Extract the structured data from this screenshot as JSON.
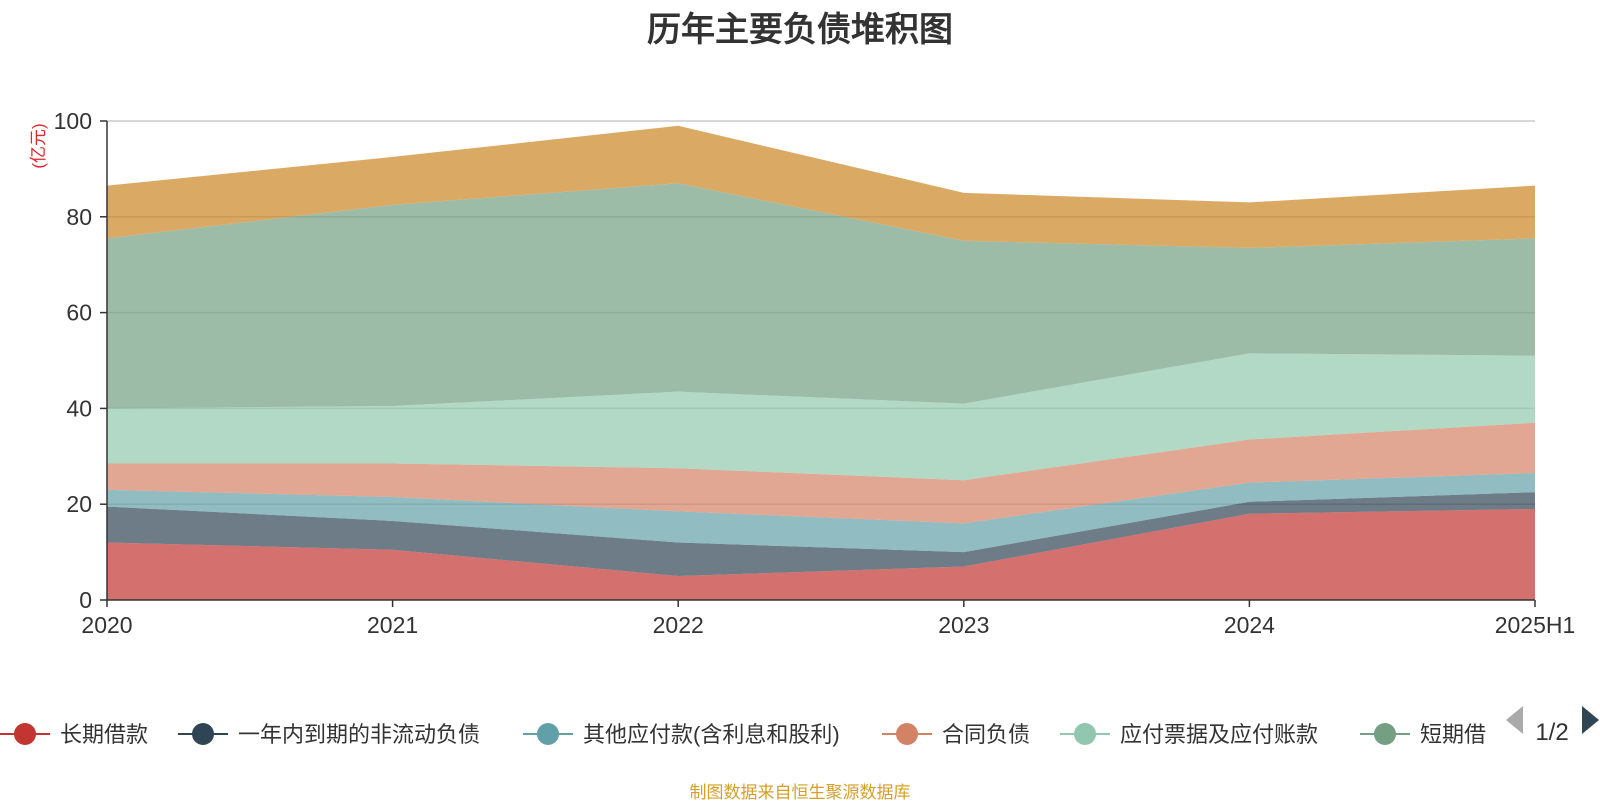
{
  "chart_data": {
    "type": "area",
    "stacked": true,
    "title": "历年主要负债堆积图",
    "ylabel": "(亿元)",
    "ylim": [
      0,
      100
    ],
    "yticks": [
      0,
      20,
      40,
      60,
      80,
      100
    ],
    "categories": [
      "2020",
      "2021",
      "2022",
      "2023",
      "2024",
      "2025H1"
    ],
    "grid": true,
    "legend_position": "bottom",
    "legend_page": "1/2",
    "series": [
      {
        "name": "长期借款",
        "color": "#c23531",
        "values": [
          12,
          10.5,
          5,
          7,
          18,
          19
        ]
      },
      {
        "name": "一年内到期的非流动负债",
        "color": "#2f4554",
        "values": [
          7.5,
          6,
          7,
          3,
          2.5,
          3.5
        ]
      },
      {
        "name": "其他应付款(含利息和股利)",
        "color": "#61a0a8",
        "values": [
          3.5,
          5,
          6.5,
          6,
          4,
          4
        ]
      },
      {
        "name": "合同负债",
        "color": "#d48265",
        "values": [
          5.5,
          7,
          9,
          9,
          9,
          10.5
        ]
      },
      {
        "name": "应付票据及应付账款",
        "color": "#91c7ae",
        "values": [
          11.5,
          12,
          16,
          16,
          18,
          14
        ]
      },
      {
        "name": "短期借款",
        "color": "#749f83",
        "values": [
          35.5,
          42,
          43.5,
          34,
          22,
          24.5
        ]
      },
      {
        "name": "",
        "color": "#ca8622",
        "values": [
          11,
          10,
          12,
          10,
          9.5,
          11
        ]
      }
    ]
  },
  "legend_labels": [
    "长期借款",
    "一年内到期的非流动负债",
    "其他应付款(含利息和股利)",
    "合同负债",
    "应付票据及应付账款",
    "短期借"
  ],
  "source_note": "制图数据来自恒生聚源数据库"
}
